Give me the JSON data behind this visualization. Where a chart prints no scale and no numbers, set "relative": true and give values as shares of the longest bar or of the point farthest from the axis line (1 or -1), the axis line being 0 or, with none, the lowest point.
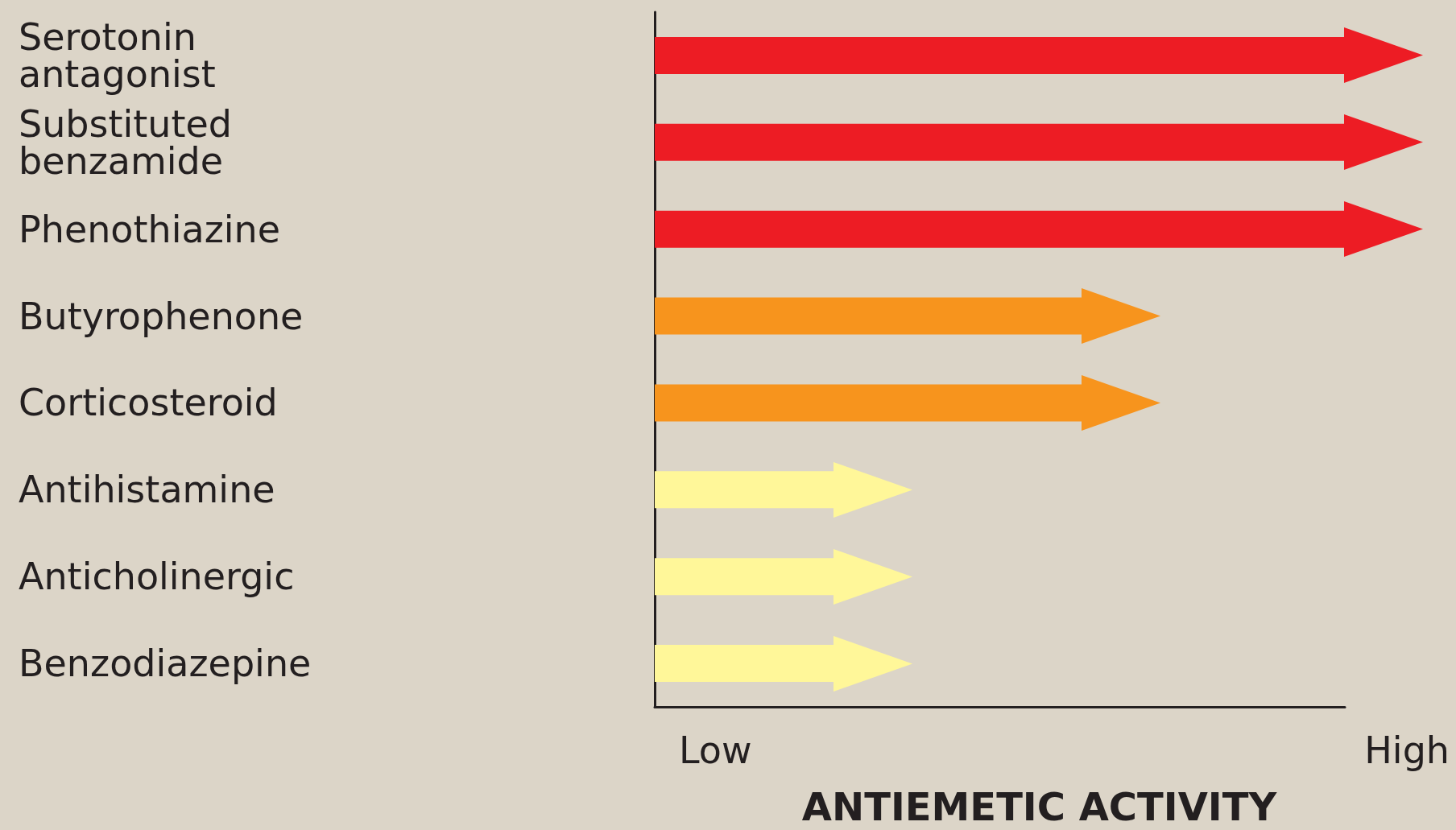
{
  "chart_data": {
    "type": "bar",
    "orientation": "horizontal",
    "relative": true,
    "xlabel": "ANTIEMETIC ACTIVITY",
    "categories": [
      "Serotonin antagonist",
      "Substituted benzamide",
      "Phenothiazine",
      "Butyrophenone",
      "Corticosteroid",
      "Antihistamine",
      "Anticholinergic",
      "Benzodiazepine"
    ],
    "values": [
      1,
      1,
      1,
      0.62,
      0.62,
      0.26,
      0.26,
      0.26
    ],
    "colors": [
      "#ed1c24",
      "#ed1c24",
      "#ed1c24",
      "#f7941d",
      "#f7941d",
      "#fff799",
      "#fff799",
      "#fff799"
    ],
    "annotations": [
      "Low",
      "High"
    ],
    "grid": false
  }
}
